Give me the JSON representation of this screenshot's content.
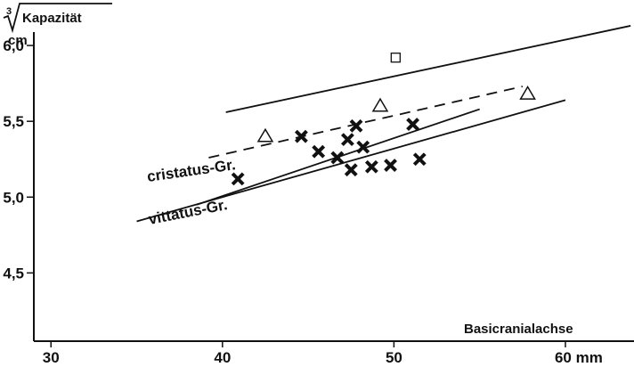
{
  "chart_data": {
    "type": "scatter",
    "xlabel": "Basicranialachse",
    "ylabel_unit": "cm",
    "ylabel_root": "3",
    "ylabel_text": "Kapazität",
    "xlim": [
      29,
      64
    ],
    "ylim": [
      4.05,
      6.3
    ],
    "x_ticks": [
      {
        "value": 30,
        "label": "30"
      },
      {
        "value": 40,
        "label": "40"
      },
      {
        "value": 50,
        "label": "50"
      },
      {
        "value": 60,
        "label": "60 mm"
      }
    ],
    "y_ticks": [
      {
        "value": 6.0,
        "label": "6,0"
      },
      {
        "value": 5.5,
        "label": "5,5"
      },
      {
        "value": 5.0,
        "label": "5,0"
      },
      {
        "value": 4.5,
        "label": "4,5"
      }
    ],
    "group_labels": {
      "cristatus": "cristatus-Gr.",
      "vittatus": "vittatus-Gr."
    },
    "series": [
      {
        "marker": "cross",
        "points": [
          {
            "x": 40.9,
            "y": 5.12
          },
          {
            "x": 44.6,
            "y": 5.4
          },
          {
            "x": 45.6,
            "y": 5.3
          },
          {
            "x": 46.7,
            "y": 5.26
          },
          {
            "x": 47.3,
            "y": 5.38
          },
          {
            "x": 47.5,
            "y": 5.18
          },
          {
            "x": 47.8,
            "y": 5.47
          },
          {
            "x": 48.2,
            "y": 5.33
          },
          {
            "x": 48.7,
            "y": 5.2
          },
          {
            "x": 49.8,
            "y": 5.21
          },
          {
            "x": 51.1,
            "y": 5.48
          },
          {
            "x": 51.5,
            "y": 5.25
          }
        ]
      },
      {
        "marker": "triangle",
        "points": [
          {
            "x": 42.5,
            "y": 5.4
          },
          {
            "x": 49.2,
            "y": 5.6
          },
          {
            "x": 57.8,
            "y": 5.68
          }
        ]
      },
      {
        "marker": "square",
        "points": [
          {
            "x": 50.1,
            "y": 5.92
          }
        ]
      }
    ],
    "lines": [
      {
        "style": "solid",
        "x": [
          40.2,
          63.8
        ],
        "y": [
          5.56,
          6.13
        ]
      },
      {
        "style": "dashed",
        "x": [
          39.2,
          57.5
        ],
        "y": [
          5.26,
          5.73
        ]
      },
      {
        "style": "solid",
        "x": [
          38.5,
          55.0
        ],
        "y": [
          4.95,
          5.58
        ]
      },
      {
        "style": "solid",
        "x": [
          35.0,
          60.0
        ],
        "y": [
          4.84,
          5.64
        ]
      }
    ]
  }
}
